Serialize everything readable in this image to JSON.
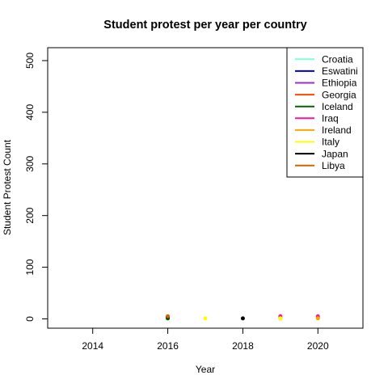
{
  "chart_data": {
    "type": "scatter",
    "title": "Student protest per year per country",
    "xlabel": "Year",
    "ylabel": "Student Protest Count",
    "xlim": [
      2012.8,
      2021.2
    ],
    "ylim": [
      -18,
      525
    ],
    "xticks": [
      2014,
      2016,
      2018,
      2020
    ],
    "yticks": [
      0,
      100,
      200,
      300,
      400,
      500
    ],
    "legend_position": "top-right",
    "series": [
      {
        "name": "Croatia",
        "color": "#7FFFD4",
        "points": [
          {
            "x": 2019,
            "y": 1
          }
        ]
      },
      {
        "name": "Eswatini",
        "color": "#0000CD",
        "points": [
          {
            "x": 2016,
            "y": 2
          }
        ]
      },
      {
        "name": "Ethiopia",
        "color": "#9932CC",
        "points": [
          {
            "x": 2016,
            "y": 3
          },
          {
            "x": 2019,
            "y": 2
          }
        ]
      },
      {
        "name": "Georgia",
        "color": "#FF4500",
        "points": [
          {
            "x": 2016,
            "y": 4
          },
          {
            "x": 2020,
            "y": 2
          }
        ]
      },
      {
        "name": "Iceland",
        "color": "#006400",
        "points": [
          {
            "x": 2016,
            "y": 1
          }
        ]
      },
      {
        "name": "Iraq",
        "color": "#FF1493",
        "points": [
          {
            "x": 2019,
            "y": 5
          },
          {
            "x": 2020,
            "y": 5
          }
        ]
      },
      {
        "name": "Ireland",
        "color": "#FFA500",
        "points": [
          {
            "x": 2019,
            "y": 1
          },
          {
            "x": 2020,
            "y": 1
          }
        ]
      },
      {
        "name": "Italy",
        "color": "#FFFF00",
        "points": [
          {
            "x": 2017,
            "y": 1
          },
          {
            "x": 2019,
            "y": 1
          }
        ]
      },
      {
        "name": "Japan",
        "color": "#000000",
        "points": [
          {
            "x": 2016,
            "y": 4
          },
          {
            "x": 2018,
            "y": 1
          }
        ]
      },
      {
        "name": "Libya",
        "color": "#CC6600",
        "points": [
          {
            "x": 2016,
            "y": 5
          }
        ]
      }
    ]
  }
}
